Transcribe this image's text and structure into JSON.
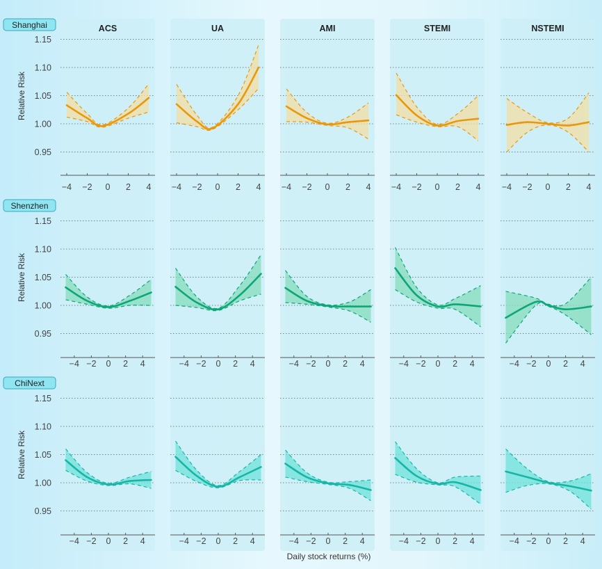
{
  "chart_data": {
    "type": "line",
    "xlabel": "Daily stock returns (%)",
    "ylabel": "Relative Risk",
    "yticks": [
      "1.15",
      "1.10",
      "1.05",
      "1.00",
      "0.95"
    ],
    "ytick_values": [
      1.15,
      1.1,
      1.05,
      1.0,
      0.95
    ],
    "ylim": [
      0.9,
      1.16
    ],
    "grid": "horizontal-dotted",
    "columns": [
      "ACS",
      "UA",
      "AMI",
      "STEMI",
      "NSTEMI"
    ],
    "rows": [
      {
        "name": "Shanghai",
        "color": "#e8980e",
        "fill": "#f3dfa6",
        "xticks": [
          "−4",
          "−2",
          "0",
          "2",
          "4"
        ],
        "xtick_values": [
          -4,
          -2,
          0,
          2,
          4
        ],
        "panels": [
          {
            "outcome": "ACS",
            "x": [
              -4,
              -2,
              -0.5,
              2,
              4
            ],
            "rr": [
              1.033,
              1.01,
              0.996,
              1.018,
              1.046
            ],
            "lo": [
              1.012,
              1.004,
              0.994,
              1.01,
              1.021
            ],
            "hi": [
              1.056,
              1.018,
              0.998,
              1.028,
              1.071
            ]
          },
          {
            "outcome": "UA",
            "x": [
              -4,
              -2,
              -0.5,
              2,
              4
            ],
            "rr": [
              1.035,
              1.004,
              0.992,
              1.035,
              1.1
            ],
            "lo": [
              1.002,
              0.995,
              0.99,
              1.025,
              1.063
            ],
            "hi": [
              1.07,
              1.015,
              0.994,
              1.05,
              1.14
            ]
          },
          {
            "outcome": "AMI",
            "x": [
              -4,
              -2,
              0,
              2,
              4
            ],
            "rr": [
              1.031,
              1.01,
              0.999,
              1.003,
              1.006
            ],
            "lo": [
              1.004,
              1.003,
              0.997,
              0.993,
              0.973
            ],
            "hi": [
              1.062,
              1.02,
              1.001,
              1.012,
              1.037
            ]
          },
          {
            "outcome": "STEMI",
            "x": [
              -4,
              -2,
              0,
              2,
              4
            ],
            "rr": [
              1.051,
              1.015,
              0.997,
              1.005,
              1.009
            ],
            "lo": [
              1.016,
              1.003,
              0.995,
              0.995,
              0.97
            ],
            "hi": [
              1.09,
              1.03,
              0.999,
              1.018,
              1.05
            ]
          },
          {
            "outcome": "NSTEMI",
            "x": [
              -4,
              -2,
              0,
              2,
              4
            ],
            "rr": [
              0.998,
              1.003,
              1.0,
              0.997,
              1.003
            ],
            "lo": [
              0.95,
              0.985,
              0.998,
              0.985,
              0.95
            ],
            "hi": [
              1.045,
              1.02,
              1.002,
              1.01,
              1.055
            ]
          }
        ]
      },
      {
        "name": "Shenzhen",
        "color": "#0ea578",
        "fill": "#86dcbc",
        "xticks": [
          "−4",
          "−2",
          "0",
          "2",
          "4"
        ],
        "xtick_values": [
          -4,
          -2,
          0,
          2,
          4
        ],
        "panels": [
          {
            "outcome": "ACS",
            "x": [
              -5,
              -2.5,
              0,
              2.5,
              5
            ],
            "rr": [
              1.032,
              1.008,
              0.997,
              1.008,
              1.023
            ],
            "lo": [
              1.01,
              1.002,
              0.995,
              1.0,
              1.0
            ],
            "hi": [
              1.055,
              1.015,
              0.999,
              1.018,
              1.046
            ]
          },
          {
            "outcome": "UA",
            "x": [
              -5,
              -2.5,
              0,
              2.5,
              5
            ],
            "rr": [
              1.033,
              1.005,
              0.993,
              1.018,
              1.056
            ],
            "lo": [
              1.0,
              0.996,
              0.991,
              1.008,
              1.02
            ],
            "hi": [
              1.066,
              1.015,
              0.995,
              1.035,
              1.09
            ]
          },
          {
            "outcome": "AMI",
            "x": [
              -5,
              -2.5,
              0,
              2.5,
              5
            ],
            "rr": [
              1.031,
              1.008,
              0.999,
              0.998,
              0.998
            ],
            "lo": [
              1.005,
              1.002,
              0.997,
              0.99,
              0.97
            ],
            "hi": [
              1.062,
              1.016,
              1.001,
              1.006,
              1.028
            ]
          },
          {
            "outcome": "STEMI",
            "x": [
              -5,
              -2.5,
              0,
              2,
              5
            ],
            "rr": [
              1.066,
              1.018,
              0.998,
              1.002,
              0.998
            ],
            "lo": [
              1.028,
              1.006,
              0.995,
              0.993,
              0.962
            ],
            "hi": [
              1.103,
              1.032,
              1.001,
              1.012,
              1.035
            ]
          },
          {
            "outcome": "NSTEMI",
            "x": [
              -5,
              -1.5,
              0,
              2,
              5
            ],
            "rr": [
              0.978,
              1.006,
              1.0,
              0.993,
              0.998
            ],
            "lo": [
              0.933,
              1.0,
              0.998,
              0.983,
              0.948
            ],
            "hi": [
              1.025,
              1.013,
              1.002,
              1.003,
              1.05
            ]
          }
        ]
      },
      {
        "name": "ChiNext",
        "color": "#18b5a6",
        "fill": "#6fe3da",
        "xticks": [
          "−4",
          "−2",
          "0",
          "2",
          "4"
        ],
        "xtick_values": [
          -4,
          -2,
          0,
          2,
          4
        ],
        "panels": [
          {
            "outcome": "ACS",
            "x": [
              -5,
              -2.5,
              0,
              2.5,
              5
            ],
            "rr": [
              1.04,
              1.01,
              0.997,
              1.003,
              1.005
            ],
            "lo": [
              1.022,
              1.003,
              0.995,
              0.998,
              0.99
            ],
            "hi": [
              1.06,
              1.018,
              0.999,
              1.01,
              1.02
            ]
          },
          {
            "outcome": "UA",
            "x": [
              -5,
              -2.5,
              0,
              2.5,
              5
            ],
            "rr": [
              1.046,
              1.012,
              0.993,
              1.01,
              1.028
            ],
            "lo": [
              1.022,
              1.002,
              0.991,
              1.004,
              1.005
            ],
            "hi": [
              1.074,
              1.022,
              0.995,
              1.02,
              1.05
            ]
          },
          {
            "outcome": "AMI",
            "x": [
              -5,
              -2.5,
              0,
              2.5,
              5
            ],
            "rr": [
              1.034,
              1.01,
              0.999,
              0.996,
              0.987
            ],
            "lo": [
              1.01,
              1.002,
              0.997,
              0.99,
              0.968
            ],
            "hi": [
              1.058,
              1.018,
              1.001,
              1.002,
              1.005
            ]
          },
          {
            "outcome": "STEMI",
            "x": [
              -5,
              -2.5,
              0,
              2,
              5
            ],
            "rr": [
              1.044,
              1.012,
              0.998,
              1.001,
              0.987
            ],
            "lo": [
              1.015,
              1.001,
              0.996,
              0.993,
              0.962
            ],
            "hi": [
              1.073,
              1.025,
              1.0,
              1.01,
              1.012
            ]
          },
          {
            "outcome": "NSTEMI",
            "x": [
              -5,
              -2.5,
              0,
              2.5,
              5
            ],
            "rr": [
              1.02,
              1.01,
              1.0,
              0.994,
              0.986
            ],
            "lo": [
              0.983,
              0.995,
              0.998,
              0.985,
              0.953
            ],
            "hi": [
              1.06,
              1.025,
              1.002,
              1.003,
              1.016
            ]
          }
        ]
      }
    ]
  }
}
